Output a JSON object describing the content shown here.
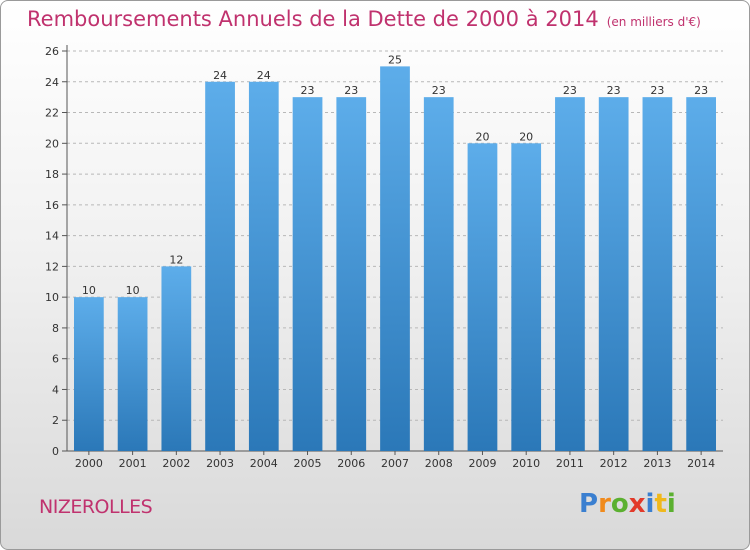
{
  "title": "Remboursements Annuels de la Dette de 2000 à 2014",
  "unit": "(en milliers d'€)",
  "commune": "NIZEROLLES",
  "logo": {
    "letters": [
      {
        "ch": "P",
        "color": "#3a7fd0"
      },
      {
        "ch": "r",
        "color": "#f08a1c"
      },
      {
        "ch": "o",
        "color": "#5bb030"
      },
      {
        "ch": "x",
        "color": "#e23a2a"
      },
      {
        "ch": "i",
        "color": "#3a7fd0"
      },
      {
        "ch": "t",
        "color": "#f0b81c"
      },
      {
        "ch": "i",
        "color": "#5bb030"
      }
    ]
  },
  "colors": {
    "bar_top": "#5dadea",
    "bar_bottom": "#2b78b8",
    "title": "#c0326e"
  },
  "chart_data": {
    "type": "bar",
    "title": "Remboursements Annuels de la Dette de 2000 à 2014",
    "ylabel": "",
    "xlabel": "",
    "categories": [
      "2000",
      "2001",
      "2002",
      "2003",
      "2004",
      "2005",
      "2006",
      "2007",
      "2008",
      "2009",
      "2010",
      "2011",
      "2012",
      "2013",
      "2014"
    ],
    "values": [
      10,
      10,
      12,
      24,
      24,
      23,
      23,
      25,
      23,
      20,
      20,
      23,
      23,
      23,
      23
    ],
    "ylim": [
      0,
      26
    ],
    "yticks": [
      0,
      2,
      4,
      6,
      8,
      10,
      12,
      14,
      16,
      18,
      20,
      22,
      24,
      26
    ],
    "grid": "horizontal dashed",
    "legend": "none"
  }
}
